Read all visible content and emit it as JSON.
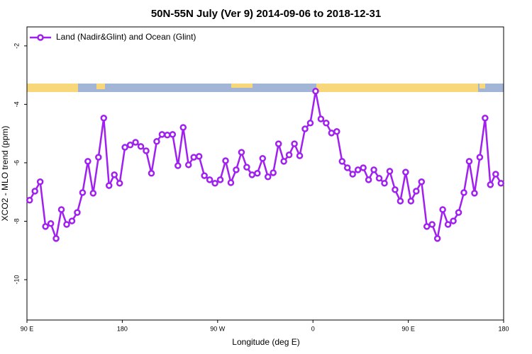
{
  "chart_data": {
    "type": "line",
    "title": "50N-55N July (Ver 9)   2014-09-06 to 2018-12-31",
    "xlabel": "Longitude (deg E)",
    "ylabel": "XCO2 - MLO trend (ppm)",
    "legend": "top-left",
    "xlim": [
      90,
      540
    ],
    "xticks": [
      {
        "value": 90,
        "label": "90 E"
      },
      180,
      {
        "value": 270,
        "label": "90 W"
      },
      {
        "value": 360,
        "label": "0"
      },
      {
        "value": 450,
        "label": "90 E"
      },
      {
        "value": 540,
        "label": "180"
      }
    ],
    "ylim": [
      -11.38,
      -1.35
    ],
    "yticks": [
      -2,
      -4,
      -6,
      -8,
      -10
    ],
    "x": [
      92.5,
      97.5,
      102.5,
      107.5,
      112.5,
      117.5,
      122.5,
      127.5,
      132.5,
      137.5,
      142.5,
      147.5,
      152.5,
      157.5,
      162.5,
      167.5,
      172.5,
      177.5,
      182.5,
      187.5,
      192.5,
      197.5,
      202.5,
      207.5,
      212.5,
      217.5,
      222.5,
      227.5,
      232.5,
      237.5,
      242.5,
      247.5,
      252.5,
      257.5,
      262.5,
      267.5,
      272.5,
      277.5,
      282.5,
      287.5,
      292.5,
      297.5,
      302.5,
      307.5,
      312.5,
      317.5,
      322.5,
      327.5,
      332.5,
      337.5,
      342.5,
      347.5,
      352.5,
      357.5,
      362.5,
      367.5,
      372.5,
      377.5,
      382.5,
      387.5,
      392.5,
      397.5,
      402.5,
      407.5,
      412.5,
      417.5,
      422.5,
      427.5,
      432.5,
      437.5,
      442.5,
      447.5,
      452.5,
      457.5,
      462.5,
      467.5,
      472.5,
      477.5,
      482.5,
      487.5,
      492.5,
      497.5,
      502.5,
      507.5,
      512.5,
      517.5,
      522.5,
      527.5,
      532.5,
      537.5
    ],
    "series": [
      {
        "name": "Land (Nadir&Glint) and Ocean (Glint)",
        "color": "#a020f0",
        "values": [
          -7.28,
          -6.97,
          -6.65,
          -8.18,
          -8.08,
          -8.59,
          -7.6,
          -8.11,
          -7.99,
          -7.7,
          -7.02,
          -5.95,
          -7.04,
          -5.81,
          -4.47,
          -6.78,
          -6.41,
          -6.7,
          -5.47,
          -5.39,
          -5.3,
          -5.44,
          -5.59,
          -6.36,
          -5.27,
          -5.03,
          -5.05,
          -5.03,
          -6.1,
          -4.79,
          -6.07,
          -5.81,
          -5.78,
          -6.44,
          -6.58,
          -6.7,
          -6.58,
          -5.93,
          -6.68,
          -6.24,
          -5.64,
          -6.15,
          -6.41,
          -6.36,
          -5.85,
          -6.48,
          -6.34,
          -5.35,
          -5.95,
          -5.73,
          -5.35,
          -5.76,
          -4.84,
          -4.64,
          -3.55,
          -4.5,
          -4.64,
          -4.98,
          -4.93,
          -5.95,
          -6.17,
          -6.39,
          -6.24,
          -6.17,
          -6.58,
          -6.24,
          -6.53,
          -6.7,
          -6.29,
          -6.92,
          -7.31,
          -6.32,
          -7.31,
          -6.97,
          -6.65,
          -8.18,
          -8.11,
          -8.59,
          -7.6,
          -8.11,
          -7.99,
          -7.7,
          -7.02,
          -5.95,
          -7.04,
          -5.81,
          -4.47,
          -6.75,
          -6.39,
          -6.7
        ]
      }
    ]
  }
}
